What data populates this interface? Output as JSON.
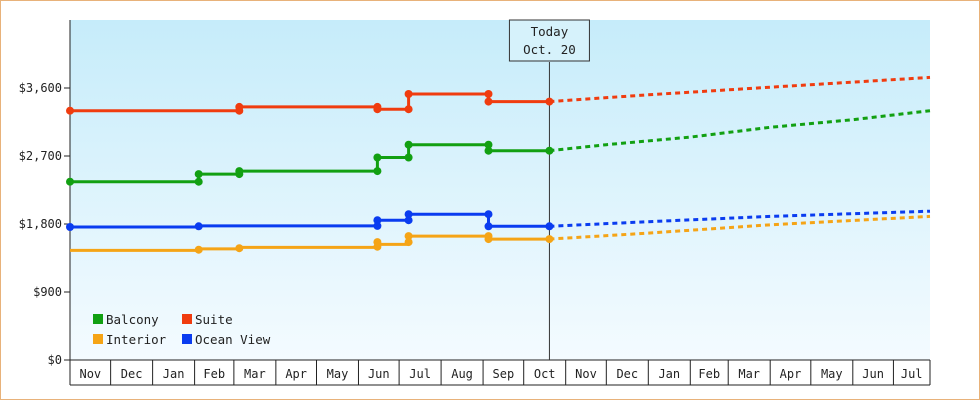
{
  "chart_data": {
    "type": "line",
    "title": "",
    "xlabel": "",
    "ylabel": "",
    "ylim": [
      0,
      4500
    ],
    "y_ticks": [
      {
        "value": 0,
        "label": "$0"
      },
      {
        "value": 900,
        "label": "$900"
      },
      {
        "value": 1800,
        "label": "$1,800"
      },
      {
        "value": 2700,
        "label": "$2,700"
      },
      {
        "value": 3600,
        "label": "$3,600"
      }
    ],
    "x_range": [
      "2019-11-01",
      "2021-07-28"
    ],
    "month_ticks": [
      {
        "start": "2019-11-01",
        "label": "Nov"
      },
      {
        "start": "2019-12-01",
        "label": "Dec"
      },
      {
        "start": "2020-01-01",
        "label": "Jan"
      },
      {
        "start": "2020-02-01",
        "label": "Feb"
      },
      {
        "start": "2020-03-01",
        "label": "Mar"
      },
      {
        "start": "2020-04-01",
        "label": "Apr"
      },
      {
        "start": "2020-05-01",
        "label": "May"
      },
      {
        "start": "2020-06-01",
        "label": "Jun"
      },
      {
        "start": "2020-07-01",
        "label": "Jul"
      },
      {
        "start": "2020-08-01",
        "label": "Aug"
      },
      {
        "start": "2020-09-01",
        "label": "Sep"
      },
      {
        "start": "2020-10-01",
        "label": "Oct"
      },
      {
        "start": "2020-11-01",
        "label": "Nov"
      },
      {
        "start": "2020-12-01",
        "label": "Dec"
      },
      {
        "start": "2021-01-01",
        "label": "Jan"
      },
      {
        "start": "2021-02-01",
        "label": "Feb"
      },
      {
        "start": "2021-03-01",
        "label": "Mar"
      },
      {
        "start": "2021-04-01",
        "label": "Apr"
      },
      {
        "start": "2021-05-01",
        "label": "May"
      },
      {
        "start": "2021-06-01",
        "label": "Jun"
      },
      {
        "start": "2021-07-01",
        "label": "Jul"
      }
    ],
    "today": {
      "date": "2020-10-20",
      "label_line1": "Today",
      "label_line2": "Oct. 20"
    },
    "grid": false,
    "background_gradient": [
      "#c6ecfa",
      "#f4fbff"
    ],
    "legend_position": "bottom-left",
    "series": [
      {
        "name": "Balcony",
        "color": "#12a012",
        "history": [
          [
            "2019-11-01",
            2360
          ],
          [
            "2020-02-04",
            2360
          ],
          [
            "2020-02-04",
            2460
          ],
          [
            "2020-03-05",
            2460
          ],
          [
            "2020-03-05",
            2500
          ],
          [
            "2020-06-15",
            2500
          ],
          [
            "2020-06-15",
            2680
          ],
          [
            "2020-07-08",
            2680
          ],
          [
            "2020-07-08",
            2850
          ],
          [
            "2020-09-05",
            2850
          ],
          [
            "2020-09-05",
            2770
          ],
          [
            "2020-10-20",
            2770
          ]
        ],
        "markers": [
          [
            "2019-11-01",
            2360
          ],
          [
            "2020-02-04",
            2360
          ],
          [
            "2020-02-04",
            2460
          ],
          [
            "2020-03-05",
            2460
          ],
          [
            "2020-03-05",
            2500
          ],
          [
            "2020-06-15",
            2500
          ],
          [
            "2020-06-15",
            2680
          ],
          [
            "2020-07-08",
            2680
          ],
          [
            "2020-07-08",
            2850
          ],
          [
            "2020-09-05",
            2850
          ],
          [
            "2020-09-05",
            2770
          ],
          [
            "2020-10-20",
            2770
          ]
        ],
        "forecast": [
          [
            "2020-10-20",
            2770
          ],
          [
            "2020-12-01",
            2850
          ],
          [
            "2021-02-01",
            2950
          ],
          [
            "2021-04-01",
            3080
          ],
          [
            "2021-06-01",
            3180
          ],
          [
            "2021-07-28",
            3300
          ]
        ]
      },
      {
        "name": "Suite",
        "color": "#f03c0f",
        "history": [
          [
            "2019-11-01",
            3300
          ],
          [
            "2020-03-05",
            3300
          ],
          [
            "2020-03-05",
            3350
          ],
          [
            "2020-06-15",
            3350
          ],
          [
            "2020-06-15",
            3320
          ],
          [
            "2020-07-08",
            3320
          ],
          [
            "2020-07-08",
            3520
          ],
          [
            "2020-09-05",
            3520
          ],
          [
            "2020-09-05",
            3420
          ],
          [
            "2020-10-20",
            3420
          ]
        ],
        "markers": [
          [
            "2019-11-01",
            3300
          ],
          [
            "2020-03-05",
            3300
          ],
          [
            "2020-03-05",
            3350
          ],
          [
            "2020-06-15",
            3350
          ],
          [
            "2020-06-15",
            3320
          ],
          [
            "2020-07-08",
            3320
          ],
          [
            "2020-07-08",
            3520
          ],
          [
            "2020-09-05",
            3520
          ],
          [
            "2020-09-05",
            3420
          ],
          [
            "2020-10-20",
            3420
          ]
        ],
        "forecast": [
          [
            "2020-10-20",
            3420
          ],
          [
            "2021-01-01",
            3510
          ],
          [
            "2021-04-01",
            3610
          ],
          [
            "2021-07-28",
            3740
          ]
        ]
      },
      {
        "name": "Interior",
        "color": "#f5a416",
        "history": [
          [
            "2019-11-01",
            1450
          ],
          [
            "2020-02-04",
            1450
          ],
          [
            "2020-02-04",
            1470
          ],
          [
            "2020-03-05",
            1470
          ],
          [
            "2020-03-05",
            1490
          ],
          [
            "2020-06-15",
            1490
          ],
          [
            "2020-06-15",
            1530
          ],
          [
            "2020-07-08",
            1530
          ],
          [
            "2020-07-08",
            1640
          ],
          [
            "2020-09-05",
            1640
          ],
          [
            "2020-09-05",
            1600
          ],
          [
            "2020-10-20",
            1600
          ]
        ],
        "markers": [
          [
            "2020-02-04",
            1460
          ],
          [
            "2020-03-05",
            1480
          ],
          [
            "2020-06-15",
            1500
          ],
          [
            "2020-06-15",
            1560
          ],
          [
            "2020-07-08",
            1560
          ],
          [
            "2020-07-08",
            1640
          ],
          [
            "2020-09-05",
            1640
          ],
          [
            "2020-09-05",
            1600
          ],
          [
            "2020-10-20",
            1600
          ]
        ],
        "forecast": [
          [
            "2020-10-20",
            1600
          ],
          [
            "2021-01-01",
            1680
          ],
          [
            "2021-04-01",
            1790
          ],
          [
            "2021-07-28",
            1900
          ]
        ]
      },
      {
        "name": "Ocean View",
        "color": "#0a3cf0",
        "history": [
          [
            "2019-11-01",
            1760
          ],
          [
            "2020-02-04",
            1760
          ],
          [
            "2020-02-04",
            1775
          ],
          [
            "2020-06-15",
            1775
          ],
          [
            "2020-06-15",
            1850
          ],
          [
            "2020-07-08",
            1850
          ],
          [
            "2020-07-08",
            1930
          ],
          [
            "2020-09-05",
            1930
          ],
          [
            "2020-09-05",
            1770
          ],
          [
            "2020-10-20",
            1770
          ]
        ],
        "markers": [
          [
            "2019-11-01",
            1760
          ],
          [
            "2020-02-04",
            1770
          ],
          [
            "2020-06-15",
            1775
          ],
          [
            "2020-06-15",
            1850
          ],
          [
            "2020-07-08",
            1850
          ],
          [
            "2020-07-08",
            1930
          ],
          [
            "2020-09-05",
            1930
          ],
          [
            "2020-09-05",
            1770
          ],
          [
            "2020-10-20",
            1770
          ]
        ],
        "forecast": [
          [
            "2020-10-20",
            1770
          ],
          [
            "2021-01-01",
            1830
          ],
          [
            "2021-04-01",
            1900
          ],
          [
            "2021-07-28",
            1970
          ]
        ]
      }
    ]
  }
}
